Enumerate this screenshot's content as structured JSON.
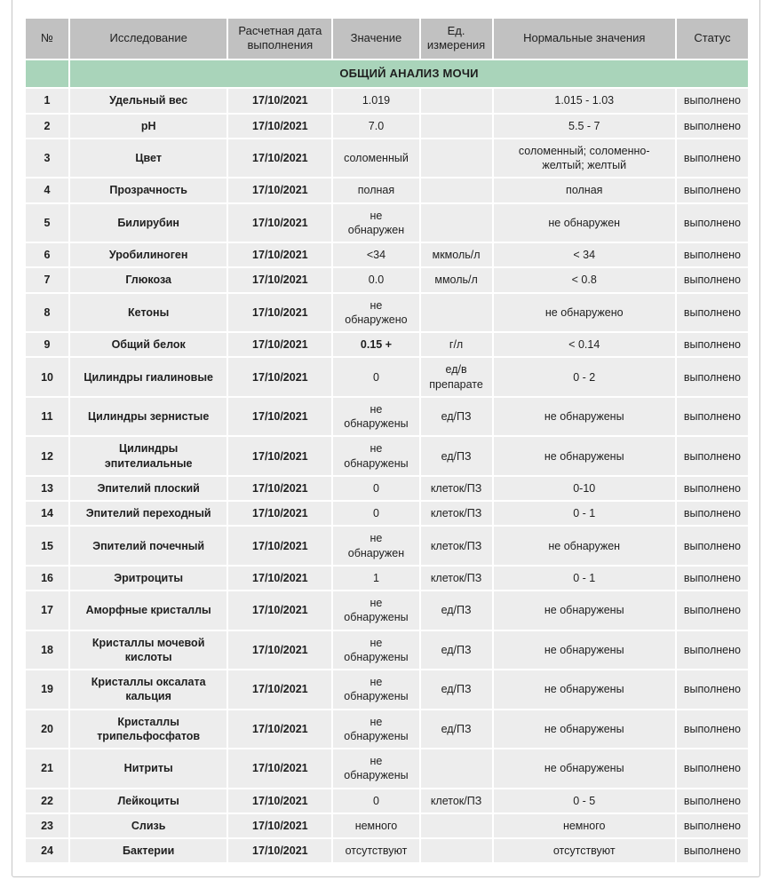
{
  "report": {
    "section_title": "ОБЩИЙ АНАЛИЗ МОЧИ"
  },
  "colors": {
    "header_bg": "#c1c1c1",
    "section_bg": "#a9d4ba",
    "row_bg": "#ededed",
    "card_border": "#c6c6c6",
    "text": "#1f1f1f"
  },
  "table": {
    "section_title": "ОБЩИЙ АНАЛИЗ МОЧИ",
    "columns": [
      {
        "key": "num",
        "label": "№"
      },
      {
        "key": "name",
        "label": "Исследование"
      },
      {
        "key": "date",
        "label": "Расчетная дата\nвыполнения"
      },
      {
        "key": "value",
        "label": "Значение"
      },
      {
        "key": "unit",
        "label": "Ед.\nизмерения"
      },
      {
        "key": "normal",
        "label": "Нормальные значения"
      },
      {
        "key": "status",
        "label": "Статус"
      }
    ],
    "rows": [
      {
        "num": "1",
        "name": "Удельный вес",
        "date": "17/10/2021",
        "value": "1.019",
        "unit": "",
        "normal": "1.015 - 1.03",
        "status": "выполнено"
      },
      {
        "num": "2",
        "name": "pH",
        "date": "17/10/2021",
        "value": "7.0",
        "unit": "",
        "normal": "5.5 - 7",
        "status": "выполнено"
      },
      {
        "num": "3",
        "name": "Цвет",
        "date": "17/10/2021",
        "value": "соломенный",
        "unit": "",
        "normal": "соломенный; соломенно-\nжелтый; желтый",
        "status": "выполнено"
      },
      {
        "num": "4",
        "name": "Прозрачность",
        "date": "17/10/2021",
        "value": "полная",
        "unit": "",
        "normal": "полная",
        "status": "выполнено"
      },
      {
        "num": "5",
        "name": "Билирубин",
        "date": "17/10/2021",
        "value": "не\nобнаружен",
        "unit": "",
        "normal": "не обнаружен",
        "status": "выполнено"
      },
      {
        "num": "6",
        "name": "Уробилиноген",
        "date": "17/10/2021",
        "value": "<34",
        "unit": "мкмоль/л",
        "normal": "< 34",
        "status": "выполнено"
      },
      {
        "num": "7",
        "name": "Глюкоза",
        "date": "17/10/2021",
        "value": "0.0",
        "unit": "ммоль/л",
        "normal": "< 0.8",
        "status": "выполнено"
      },
      {
        "num": "8",
        "name": "Кетоны",
        "date": "17/10/2021",
        "value": "не\nобнаружено",
        "unit": "",
        "normal": "не обнаружено",
        "status": "выполнено"
      },
      {
        "num": "9",
        "name": "Общий белок",
        "date": "17/10/2021",
        "value": "0.15 +",
        "unit": "г/л",
        "normal": "< 0.14",
        "status": "выполнено",
        "value_bold": true
      },
      {
        "num": "10",
        "name": "Цилиндры гиалиновые",
        "date": "17/10/2021",
        "value": "0",
        "unit": "ед/в\nпрепарате",
        "normal": "0 - 2",
        "status": "выполнено"
      },
      {
        "num": "11",
        "name": "Цилиндры зернистые",
        "date": "17/10/2021",
        "value": "не\nобнаружены",
        "unit": "ед/ПЗ",
        "normal": "не обнаружены",
        "status": "выполнено"
      },
      {
        "num": "12",
        "name": "Цилиндры\nэпителиальные",
        "date": "17/10/2021",
        "value": "не\nобнаружены",
        "unit": "ед/ПЗ",
        "normal": "не обнаружены",
        "status": "выполнено"
      },
      {
        "num": "13",
        "name": "Эпителий плоский",
        "date": "17/10/2021",
        "value": "0",
        "unit": "клеток/ПЗ",
        "normal": "0-10",
        "status": "выполнено"
      },
      {
        "num": "14",
        "name": "Эпителий переходный",
        "date": "17/10/2021",
        "value": "0",
        "unit": "клеток/ПЗ",
        "normal": "0 - 1",
        "status": "выполнено"
      },
      {
        "num": "15",
        "name": "Эпителий почечный",
        "date": "17/10/2021",
        "value": "не\nобнаружен",
        "unit": "клеток/ПЗ",
        "normal": "не обнаружен",
        "status": "выполнено"
      },
      {
        "num": "16",
        "name": "Эритроциты",
        "date": "17/10/2021",
        "value": "1",
        "unit": "клеток/ПЗ",
        "normal": "0 - 1",
        "status": "выполнено"
      },
      {
        "num": "17",
        "name": "Аморфные кристаллы",
        "date": "17/10/2021",
        "value": "не\nобнаружены",
        "unit": "ед/ПЗ",
        "normal": "не обнаружены",
        "status": "выполнено"
      },
      {
        "num": "18",
        "name": "Кристаллы мочевой\nкислоты",
        "date": "17/10/2021",
        "value": "не\nобнаружены",
        "unit": "ед/ПЗ",
        "normal": "не обнаружены",
        "status": "выполнено"
      },
      {
        "num": "19",
        "name": "Кристаллы оксалата\nкальция",
        "date": "17/10/2021",
        "value": "не\nобнаружены",
        "unit": "ед/ПЗ",
        "normal": "не обнаружены",
        "status": "выполнено"
      },
      {
        "num": "20",
        "name": "Кристаллы\nтрипельфосфатов",
        "date": "17/10/2021",
        "value": "не\nобнаружены",
        "unit": "ед/ПЗ",
        "normal": "не обнаружены",
        "status": "выполнено"
      },
      {
        "num": "21",
        "name": "Нитриты",
        "date": "17/10/2021",
        "value": "не\nобнаружены",
        "unit": "",
        "normal": "не обнаружены",
        "status": "выполнено"
      },
      {
        "num": "22",
        "name": "Лейкоциты",
        "date": "17/10/2021",
        "value": "0",
        "unit": "клеток/ПЗ",
        "normal": "0 - 5",
        "status": "выполнено"
      },
      {
        "num": "23",
        "name": "Слизь",
        "date": "17/10/2021",
        "value": "немного",
        "unit": "",
        "normal": "немного",
        "status": "выполнено"
      },
      {
        "num": "24",
        "name": "Бактерии",
        "date": "17/10/2021",
        "value": "отсутствуют",
        "unit": "",
        "normal": "отсутствуют",
        "status": "выполнено"
      }
    ]
  }
}
